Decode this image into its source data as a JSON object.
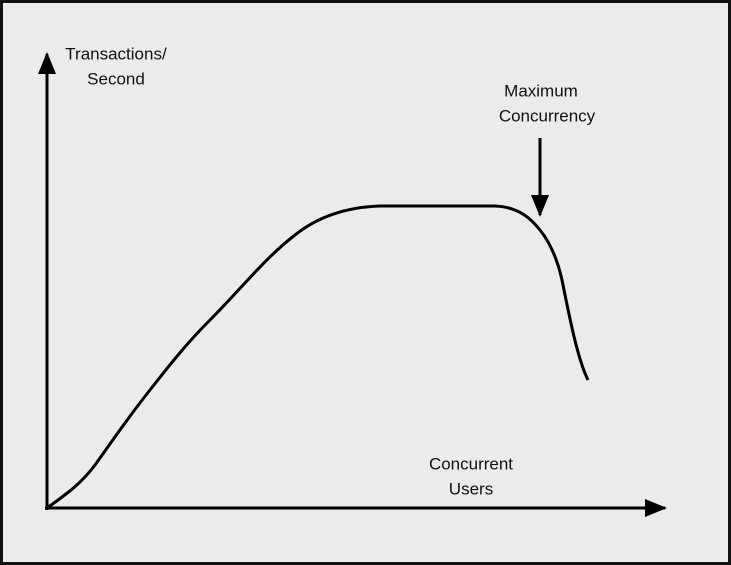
{
  "y_axis_label": [
    "Transactions/",
    "Second"
  ],
  "x_axis_label": [
    "Concurrent",
    "Users"
  ],
  "annotation": [
    "Maximum",
    "Concurrency"
  ]
}
